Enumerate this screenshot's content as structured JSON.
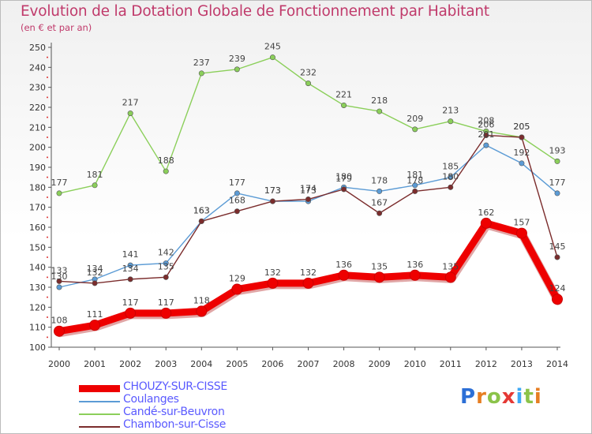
{
  "header": {
    "title": "Evolution de la Dotation Globale de Fonctionnement par Habitant",
    "subtitle": "(en € et par an)"
  },
  "logo": {
    "letters": [
      "P",
      "r",
      "o",
      "x",
      "i",
      "t",
      "i"
    ],
    "colors": [
      "#2c6fd6",
      "#e67e22",
      "#8bc34a",
      "#e53935",
      "#3fa9f5",
      "#8bc34a",
      "#e67e22"
    ]
  },
  "chart_data": {
    "type": "line",
    "title": "Evolution de la Dotation Globale de Fonctionnement par Habitant",
    "subtitle": "(en € et par an)",
    "xlabel": "",
    "ylabel": "",
    "x": [
      "2000",
      "2001",
      "2002",
      "2003",
      "2004",
      "2005",
      "2006",
      "2007",
      "2008",
      "2009",
      "2010",
      "2011",
      "2012",
      "2013",
      "2014"
    ],
    "yticks": [
      100,
      110,
      120,
      130,
      140,
      150,
      160,
      170,
      180,
      190,
      200,
      210,
      220,
      230,
      240,
      250
    ],
    "ylim": [
      100,
      250
    ],
    "grid": false,
    "legend": "bottom-left",
    "series": [
      {
        "name": "Candé-sur-Beuvron",
        "color": "#8bcf5a",
        "emphasis": false,
        "values": [
          177,
          181,
          217,
          188,
          237,
          239,
          245,
          232,
          221,
          218,
          209,
          213,
          208,
          205,
          193
        ],
        "labels": [
          "177",
          "181",
          "217",
          "188",
          "237",
          "239",
          "245",
          "232",
          "221",
          "218",
          "209",
          "213",
          "208",
          "205",
          "193"
        ]
      },
      {
        "name": "Coulanges",
        "color": "#5b9bd5",
        "emphasis": false,
        "values": [
          130,
          134,
          141,
          142,
          163,
          177,
          173,
          173,
          180,
          178,
          181,
          185,
          201,
          192,
          177
        ],
        "labels": [
          "130",
          "134",
          "141",
          "142",
          "163",
          "177",
          "173",
          "173",
          "180",
          "178",
          "181",
          "185",
          "201",
          "192",
          "177"
        ]
      },
      {
        "name": "Chambon-sur-Cisse",
        "color": "#7b2c2c",
        "emphasis": false,
        "values": [
          133,
          132,
          134,
          135,
          163,
          168,
          173,
          174,
          179,
          167,
          178,
          180,
          206,
          205,
          145
        ],
        "labels": [
          "133",
          "132",
          "134",
          "135",
          "163",
          "168",
          "173",
          "174",
          "179",
          "167",
          "178",
          "180",
          "206",
          "205",
          "145"
        ]
      },
      {
        "name": "CHOUZY-SUR-CISSE",
        "color": "#ee0000",
        "emphasis": true,
        "values": [
          108,
          111,
          117,
          117,
          118,
          129,
          132,
          132,
          136,
          135,
          136,
          135,
          162,
          157,
          124
        ],
        "labels": [
          "108",
          "111",
          "117",
          "117",
          "118",
          "129",
          "132",
          "132",
          "136",
          "135",
          "136",
          "135",
          "162",
          "157",
          "124"
        ]
      }
    ],
    "legend_entries": [
      {
        "name": "CHOUZY-SUR-CISSE",
        "color": "#ee0000",
        "text_color": "#5a5aff",
        "thick": true
      },
      {
        "name": "Coulanges",
        "color": "#5b9bd5",
        "text_color": "#5a5aff",
        "thick": false
      },
      {
        "name": "Candé-sur-Beuvron",
        "color": "#8bcf5a",
        "text_color": "#5a5aff",
        "thick": false
      },
      {
        "name": "Chambon-sur-Cisse",
        "color": "#7b2c2c",
        "text_color": "#5a5aff",
        "thick": false
      }
    ]
  }
}
